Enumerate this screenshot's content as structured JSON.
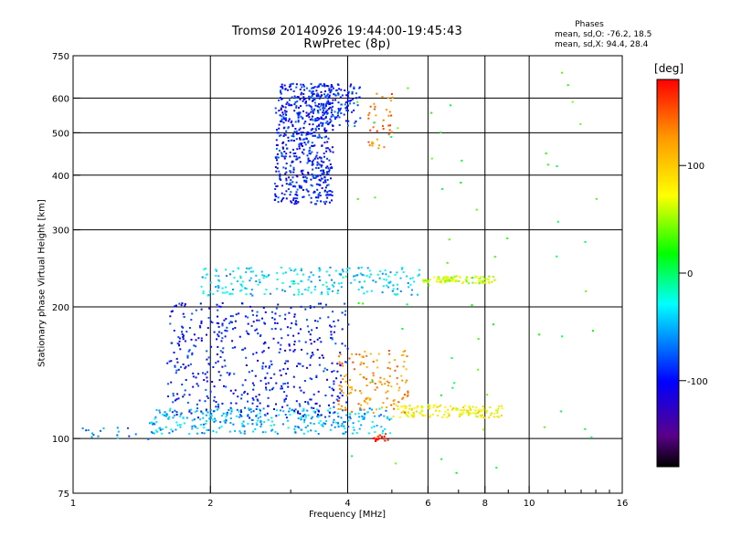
{
  "title": "Tromsø 20140926 19:44:00-19:45:43",
  "subtitle": "RwPretec (8p)",
  "stats": {
    "title": "Phases",
    "o_line": "mean, sd,O: -76.2, 18.5",
    "x_line": "mean, sd,X:  94.4, 28.4"
  },
  "chart_data": {
    "type": "scatter",
    "xlabel": "Frequency [MHz]",
    "ylabel": "Stationary phase Virtual Height [km]",
    "x_scale": "log",
    "y_scale": "log",
    "xlim": [
      1,
      16
    ],
    "ylim": [
      75,
      750
    ],
    "grid": true,
    "x_ticks": [
      1,
      2,
      4,
      6,
      8,
      10,
      16
    ],
    "x_tick_labels": [
      "1",
      "2",
      "4",
      "6",
      "8",
      "10",
      "16"
    ],
    "x_gridlines": [
      2,
      4,
      6,
      8,
      10
    ],
    "y_ticks": [
      75,
      100,
      200,
      300,
      400,
      500,
      600,
      750
    ],
    "y_tick_labels": [
      "75",
      "100",
      "200",
      "300",
      "400",
      "500",
      "600",
      "750"
    ],
    "y_gridlines": [
      100,
      200,
      300,
      400,
      500,
      600
    ],
    "colorbar": {
      "unit": "deg",
      "range": [
        -180,
        180
      ],
      "tick_values": [
        100,
        0,
        -100
      ],
      "tick_labels": [
        "100",
        "0",
        "-100"
      ],
      "colors": [
        "#000000",
        "#5a008a",
        "#0000ff",
        "#00bfff",
        "#00ffff",
        "#00ff00",
        "#ffff00",
        "#ff9900",
        "#ff0000"
      ]
    },
    "series": [
      {
        "name": "",
        "fmin": 2.75,
        "fmax": 3.7,
        "hmin": 345,
        "hmax": 650,
        "phase": -95,
        "count": 600
      },
      {
        "name": "",
        "fmin": 3.3,
        "fmax": 4.25,
        "hmin": 520,
        "hmax": 650,
        "phase": -90,
        "count": 150
      },
      {
        "name": "",
        "fmin": 1.9,
        "fmax": 5.8,
        "hmin": 213,
        "hmax": 248,
        "phase": -40,
        "count": 230
      },
      {
        "name": "",
        "fmin": 5.8,
        "fmax": 8.4,
        "hmin": 227,
        "hmax": 236,
        "phase": 60,
        "count": 90
      },
      {
        "name": "",
        "fmin": 1.45,
        "fmax": 5.0,
        "hmin": 103,
        "hmax": 118,
        "phase": -50,
        "count": 320
      },
      {
        "name": "",
        "fmin": 5.0,
        "fmax": 8.7,
        "hmin": 112,
        "hmax": 120,
        "phase": 80,
        "count": 150
      },
      {
        "name": "",
        "fmin": 1.6,
        "fmax": 4.0,
        "hmin": 112,
        "hmax": 205,
        "phase": -95,
        "count": 520
      },
      {
        "name": "",
        "fmin": 3.8,
        "fmax": 5.4,
        "hmin": 115,
        "hmax": 160,
        "phase": 130,
        "count": 140
      },
      {
        "name": "",
        "fmin": 4.4,
        "fmax": 5.0,
        "hmin": 460,
        "hmax": 620,
        "phase": 140,
        "count": 40
      },
      {
        "name": "",
        "fmin": 4.5,
        "fmax": 4.9,
        "hmin": 99,
        "hmax": 103,
        "phase": 170,
        "count": 20
      },
      {
        "name": "",
        "fmin": 1.0,
        "fmax": 1.5,
        "hmin": 100,
        "hmax": 108,
        "phase": -60,
        "count": 18
      },
      {
        "name": "",
        "fmin": 4.0,
        "fmax": 14.0,
        "hmin": 80,
        "hmax": 700,
        "phase": 20,
        "count": 60
      }
    ]
  }
}
